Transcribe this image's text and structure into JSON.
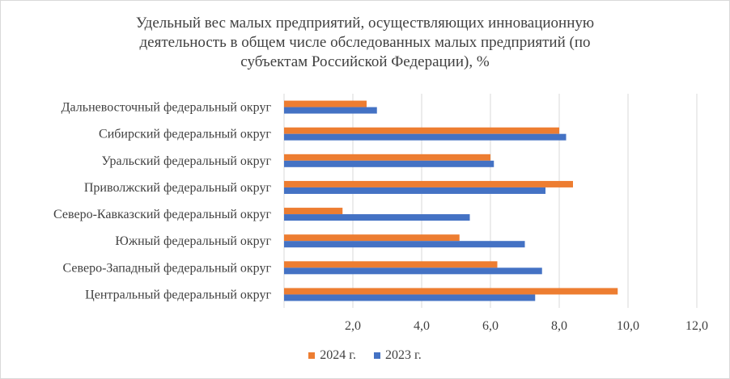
{
  "chart_data": {
    "type": "bar",
    "orientation": "horizontal",
    "title": "Удельный вес малых предприятий, осуществляющих инновационную деятельность в общем числе обследованных малых предприятий (по субъектам Российской Федерации), %",
    "title_lines": [
      "Удельный вес малых предприятий, осуществляющих инновационную",
      "деятельность в общем числе обследованных малых предприятий (по",
      "субъектам Российской Федерации), %"
    ],
    "categories": [
      "Дальневосточный федеральный округ",
      "Сибирский федеральный округ",
      "Уральский федеральный округ",
      "Приволжский федеральный округ",
      "Северо-Кавказский федеральный округ",
      "Южный федеральный округ",
      "Северо-Западный федеральный округ",
      "Центральный федеральный округ"
    ],
    "series": [
      {
        "name": "2024 г.",
        "color": "#ED7D31",
        "values": [
          2.4,
          8.0,
          6.0,
          8.4,
          1.7,
          5.1,
          6.2,
          9.7
        ]
      },
      {
        "name": "2023 г.",
        "color": "#4472C4",
        "values": [
          2.7,
          8.2,
          6.1,
          7.6,
          5.4,
          7.0,
          7.5,
          7.3
        ]
      }
    ],
    "xlim": [
      0,
      12
    ],
    "xticks": [
      2,
      4,
      6,
      8,
      10,
      12
    ],
    "xtick_labels": [
      "2,0",
      "4,0",
      "6,0",
      "8,0",
      "10,0",
      "12,0"
    ],
    "xlabel": "",
    "ylabel": "",
    "grid": "vertical",
    "legend_position": "bottom"
  }
}
